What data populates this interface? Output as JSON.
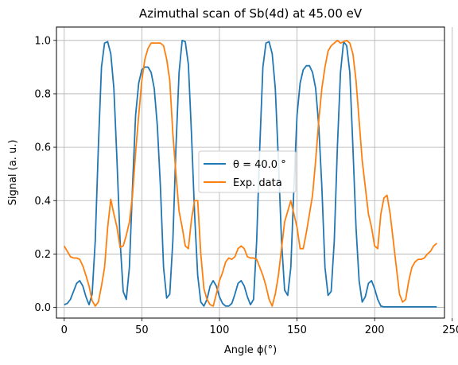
{
  "chart_data": {
    "type": "line",
    "title": "Azimuthal scan of Sb(4d) at 45.00 eV",
    "xlabel": "Angle ϕ(°)",
    "ylabel": "Signal (a. u.)",
    "xlim": [
      -5,
      245
    ],
    "ylim": [
      -0.04,
      1.05
    ],
    "xticks": [
      0,
      50,
      100,
      150,
      200,
      250
    ],
    "xtick_labels": [
      "0",
      "50",
      "100",
      "150",
      "200",
      "250"
    ],
    "yticks": [
      0.0,
      0.2,
      0.4,
      0.6,
      0.8,
      1.0
    ],
    "ytick_labels": [
      "0.0",
      "0.2",
      "0.4",
      "0.6",
      "0.8",
      "1.0"
    ],
    "grid": true,
    "legend": "center",
    "x": [
      0,
      2,
      4,
      6,
      8,
      10,
      12,
      14,
      16,
      18,
      20,
      22,
      24,
      26,
      28,
      30,
      32,
      34,
      36,
      38,
      40,
      42,
      44,
      46,
      48,
      50,
      52,
      54,
      56,
      58,
      60,
      62,
      64,
      66,
      68,
      70,
      72,
      74,
      76,
      78,
      80,
      82,
      84,
      86,
      88,
      90,
      92,
      94,
      96,
      98,
      100,
      102,
      104,
      106,
      108,
      110,
      112,
      114,
      116,
      118,
      120,
      122,
      124,
      126,
      128,
      130,
      132,
      134,
      136,
      138,
      140,
      142,
      144,
      146,
      148,
      150,
      152,
      154,
      156,
      158,
      160,
      162,
      164,
      166,
      168,
      170,
      172,
      174,
      176,
      178,
      180,
      182,
      184,
      186,
      188,
      190,
      192,
      194,
      196,
      198,
      200,
      202,
      204,
      206,
      208,
      210,
      212,
      214,
      216,
      218,
      220,
      222,
      224,
      226,
      228,
      230,
      232,
      234,
      236,
      238,
      240
    ],
    "series": [
      {
        "name": "θ = 40.0 °",
        "color": "#1f77b4",
        "values": [
          0.01,
          0.015,
          0.03,
          0.06,
          0.09,
          0.1,
          0.08,
          0.04,
          0.01,
          0.05,
          0.25,
          0.6,
          0.9,
          0.99,
          0.995,
          0.95,
          0.82,
          0.55,
          0.25,
          0.06,
          0.03,
          0.15,
          0.45,
          0.72,
          0.84,
          0.89,
          0.9,
          0.9,
          0.88,
          0.82,
          0.68,
          0.45,
          0.15,
          0.035,
          0.05,
          0.25,
          0.6,
          0.88,
          1.0,
          0.995,
          0.91,
          0.65,
          0.35,
          0.12,
          0.02,
          0.005,
          0.03,
          0.08,
          0.1,
          0.08,
          0.04,
          0.015,
          0.005,
          0.005,
          0.015,
          0.05,
          0.09,
          0.1,
          0.08,
          0.04,
          0.01,
          0.03,
          0.25,
          0.6,
          0.9,
          0.99,
          0.995,
          0.95,
          0.82,
          0.55,
          0.25,
          0.065,
          0.045,
          0.15,
          0.45,
          0.72,
          0.84,
          0.89,
          0.905,
          0.905,
          0.88,
          0.82,
          0.68,
          0.45,
          0.15,
          0.045,
          0.06,
          0.25,
          0.6,
          0.88,
          0.995,
          0.98,
          0.88,
          0.6,
          0.3,
          0.1,
          0.02,
          0.04,
          0.09,
          0.1,
          0.07,
          0.03,
          0.005,
          0.002,
          0.002,
          0.002,
          0.002,
          0.002,
          0.002,
          0.002,
          0.002,
          0.002,
          0.002,
          0.002,
          0.002,
          0.002,
          0.002,
          0.002,
          0.002,
          0.002,
          0.002
        ]
      },
      {
        "name": "Exp. data",
        "color": "#ff7f0e",
        "values": [
          0.23,
          0.21,
          0.19,
          0.185,
          0.185,
          0.18,
          0.155,
          0.12,
          0.08,
          0.025,
          0.005,
          0.02,
          0.08,
          0.15,
          0.3,
          0.405,
          0.35,
          0.3,
          0.225,
          0.23,
          0.27,
          0.32,
          0.42,
          0.58,
          0.72,
          0.85,
          0.93,
          0.97,
          0.99,
          0.99,
          0.99,
          0.99,
          0.98,
          0.93,
          0.85,
          0.65,
          0.5,
          0.36,
          0.3,
          0.23,
          0.22,
          0.33,
          0.4,
          0.4,
          0.2,
          0.07,
          0.03,
          0.01,
          0.005,
          0.05,
          0.1,
          0.13,
          0.17,
          0.185,
          0.18,
          0.19,
          0.22,
          0.23,
          0.22,
          0.19,
          0.185,
          0.185,
          0.18,
          0.15,
          0.12,
          0.08,
          0.03,
          0.005,
          0.05,
          0.12,
          0.22,
          0.32,
          0.36,
          0.4,
          0.35,
          0.3,
          0.22,
          0.22,
          0.28,
          0.35,
          0.42,
          0.55,
          0.7,
          0.82,
          0.9,
          0.96,
          0.98,
          0.99,
          1.0,
          0.99,
          0.995,
          1.0,
          0.99,
          0.95,
          0.85,
          0.7,
          0.55,
          0.45,
          0.35,
          0.3,
          0.23,
          0.22,
          0.35,
          0.41,
          0.42,
          0.35,
          0.25,
          0.15,
          0.05,
          0.02,
          0.03,
          0.1,
          0.15,
          0.17,
          0.18,
          0.18,
          0.185,
          0.2,
          0.21,
          0.23,
          0.24
        ]
      }
    ]
  }
}
